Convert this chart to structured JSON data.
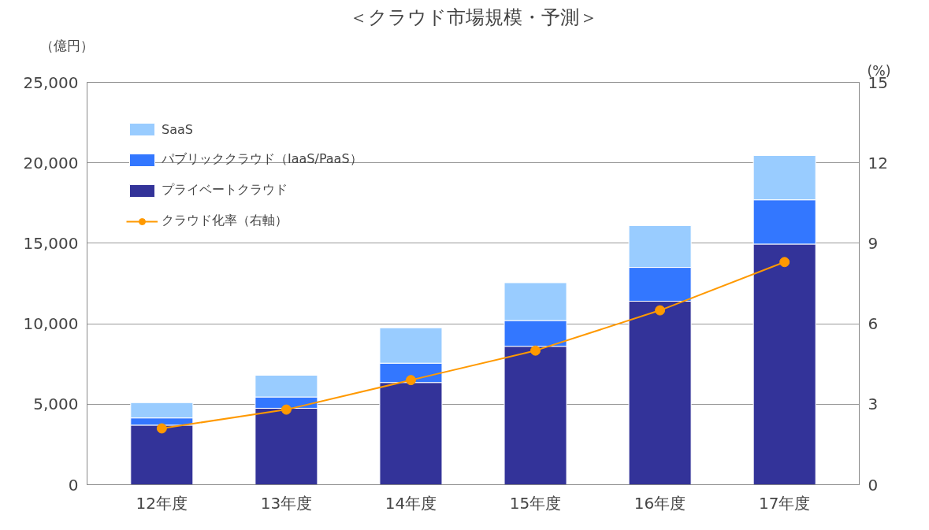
{
  "chart_data": {
    "type": "bar",
    "title": "＜クラウド市場規模・予測＞",
    "ylabel": "（億円）",
    "y2label": "(%)",
    "categories": [
      "12年度",
      "13年度",
      "14年度",
      "15年度",
      "16年度",
      "17年度"
    ],
    "stacked": true,
    "series": [
      {
        "name": "プライベートクラウド",
        "color": "#333399",
        "values": [
          3700,
          4750,
          6350,
          8600,
          11400,
          14950
        ]
      },
      {
        "name": "パブリッククラウド（IaaS/PaaS）",
        "color": "#3377ff",
        "values": [
          450,
          700,
          1200,
          1600,
          2100,
          2750
        ]
      },
      {
        "name": "SaaS",
        "color": "#99ccff",
        "values": [
          950,
          1350,
          2200,
          2350,
          2600,
          2750
        ]
      },
      {
        "name": "クラウド化率（右軸）",
        "type": "line",
        "axis": "y2",
        "color": "#ff9900",
        "marker": "circle",
        "values": [
          2.1,
          2.8,
          3.9,
          5.0,
          6.5,
          8.3
        ]
      }
    ],
    "ylim": [
      0,
      25000
    ],
    "yticks": [
      0,
      {
        "value": 5000,
        "label": "5,000"
      },
      {
        "value": 10000,
        "label": "10,000"
      },
      {
        "value": 15000,
        "label": "15,000"
      },
      {
        "value": 20000,
        "label": "20,000"
      },
      {
        "value": 25000,
        "label": "25,000"
      }
    ],
    "y2lim": [
      0,
      15
    ],
    "y2ticks": [
      0,
      3,
      6,
      9,
      12,
      15
    ],
    "grid": "y",
    "legend": "top left"
  }
}
